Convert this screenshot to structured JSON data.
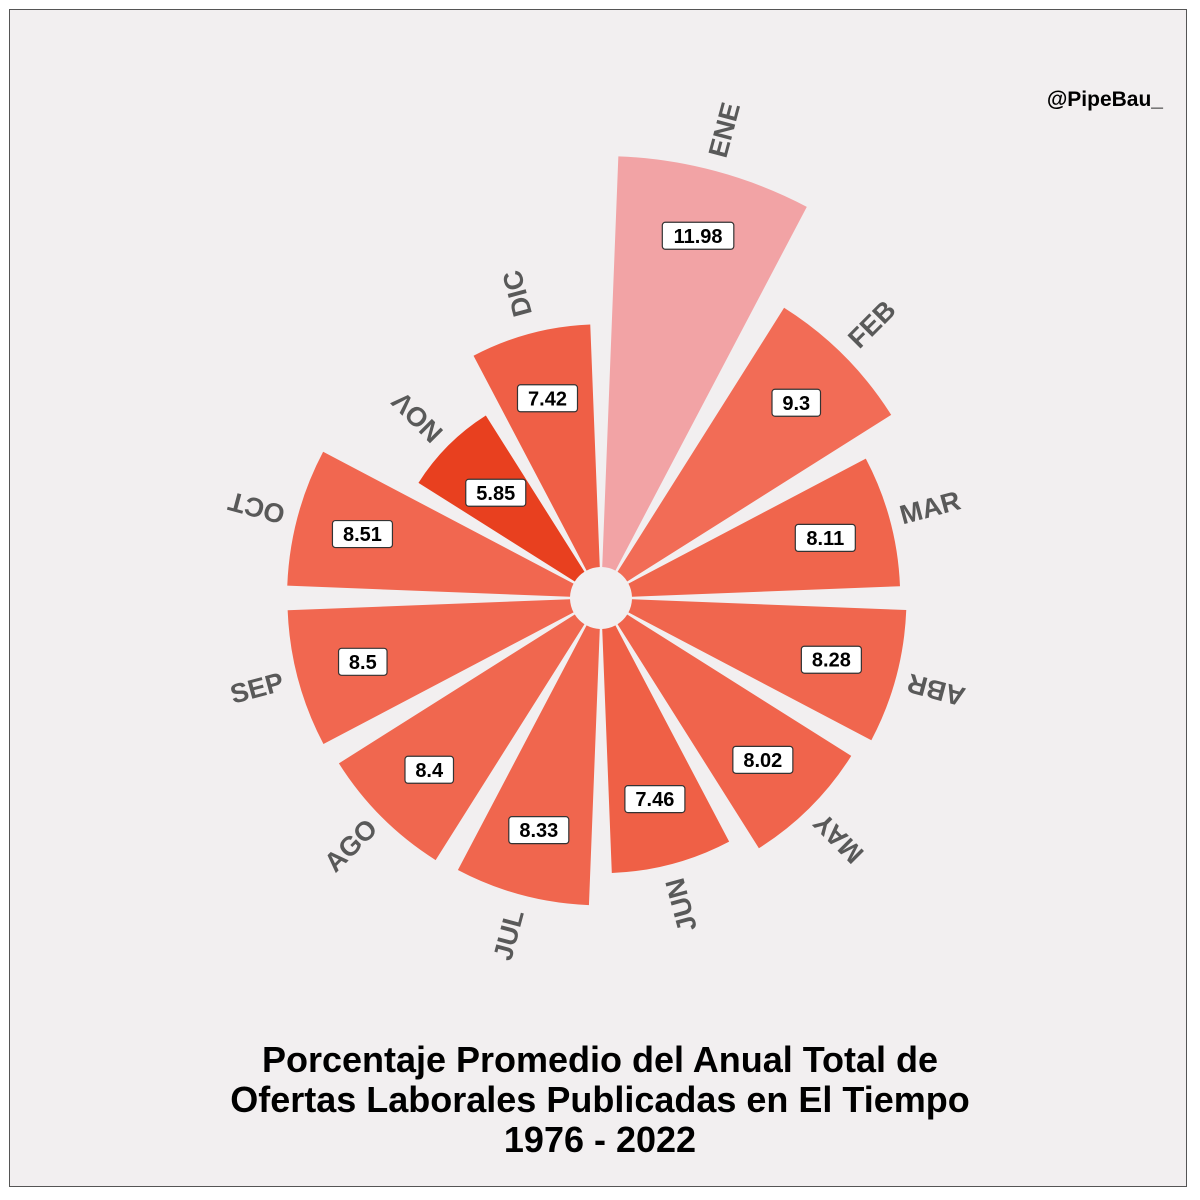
{
  "watermark": "@PipeBau_",
  "title_lines": [
    "Porcentaje Promedio del Anual Total de",
    "Ofertas Laborales Publicadas en El Tiempo",
    "1976 - 2022"
  ],
  "chart_data": {
    "type": "bar",
    "layout": "polar",
    "categories": [
      "ENE",
      "FEB",
      "MAR",
      "ABR",
      "MAY",
      "JUN",
      "JUL",
      "AGO",
      "SEP",
      "OCT",
      "NOV",
      "DIC"
    ],
    "values": [
      11.98,
      9.3,
      8.11,
      8.28,
      8.02,
      7.46,
      8.33,
      8.4,
      8.5,
      8.51,
      5.85,
      7.42
    ],
    "value_labels": [
      "11.98",
      "9.3",
      "8.11",
      "8.28",
      "8.02",
      "7.46",
      "8.33",
      "8.4",
      "8.5",
      "8.51",
      "5.85",
      "7.42"
    ],
    "title": "Porcentaje Promedio del Anual Total de Ofertas Laborales Publicadas en El Tiempo 1976 - 2022",
    "xlabel": "",
    "ylabel": "",
    "grid": false,
    "legend": "none",
    "colors": {
      "background": "#f2eff0",
      "low": "#e8401f",
      "high": "#f2a3a5",
      "label_box": "#ffffff",
      "label_border": "#333333",
      "category_text": "#595959"
    }
  }
}
